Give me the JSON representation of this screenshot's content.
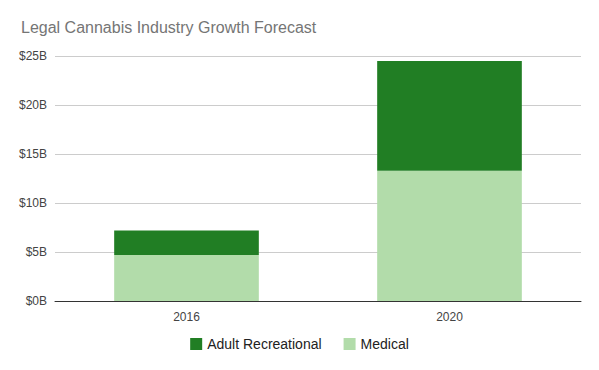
{
  "chart_data": {
    "type": "bar",
    "title": "Legal Cannabis Industry Growth Forecast",
    "categories": [
      "2016",
      "2020"
    ],
    "series": [
      {
        "name": "Adult Recreational",
        "color": "#217e24",
        "values": [
          2.5,
          11.2
        ]
      },
      {
        "name": "Medical",
        "color": "#b2dcaa",
        "values": [
          4.7,
          13.3
        ]
      }
    ],
    "stacked": true,
    "ylim": [
      0,
      25
    ],
    "yticks": [
      {
        "value": 0,
        "label": "$0B"
      },
      {
        "value": 5,
        "label": "$5B"
      },
      {
        "value": 10,
        "label": "$10B"
      },
      {
        "value": 15,
        "label": "$15B"
      },
      {
        "value": 20,
        "label": "$20B"
      },
      {
        "value": 25,
        "label": "$25B"
      }
    ],
    "grid": true,
    "legend": "bottom"
  }
}
